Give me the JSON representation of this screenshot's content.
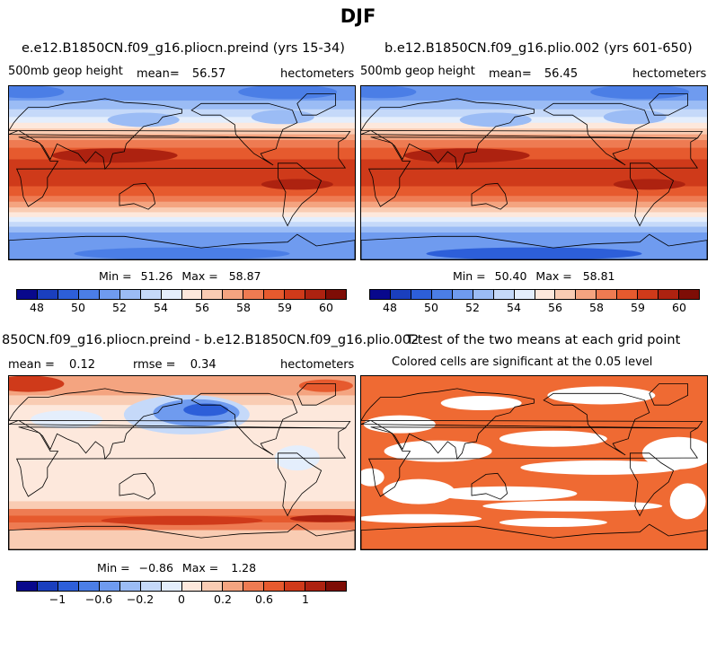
{
  "page_title": "DJF",
  "chart_data": [
    {
      "type": "heatmap",
      "title": "e.e12.B1850CN.f09_g16.pliocn.preind (yrs 15-34)",
      "variable": "500mb geop height",
      "mean_label": "mean=",
      "mean": "56.57",
      "units": "hectometers",
      "min_label": "Min =",
      "min": "51.26",
      "max_label": "Max =",
      "max": "58.87",
      "colorbar_ticks": [
        "48",
        "50",
        "52",
        "54",
        "56",
        "58",
        "59",
        "60"
      ],
      "field": "abs"
    },
    {
      "type": "heatmap",
      "title": "b.e12.B1850CN.f09_g16.plio.002 (yrs 601-650)",
      "variable": "500mb geop height",
      "mean_label": "mean=",
      "mean": "56.45",
      "units": "hectometers",
      "min_label": "Min =",
      "min": "50.40",
      "max_label": "Max =",
      "max": "58.81",
      "colorbar_ticks": [
        "48",
        "50",
        "52",
        "54",
        "56",
        "58",
        "59",
        "60"
      ],
      "field": "abs"
    },
    {
      "type": "heatmap",
      "title": "850CN.f09_g16.pliocn.preind - b.e12.B1850CN.f09_g16.plio.002",
      "mean_label": "mean =",
      "mean": "0.12",
      "rmse_label": "rmse =",
      "rmse": "0.34",
      "units": "hectometers",
      "min_label": "Min =",
      "min": "−0.86",
      "max_label": "Max =",
      "max": "1.28",
      "colorbar_ticks": [
        "−1",
        "−0.6",
        "−0.2",
        "0",
        "0.2",
        "0.6",
        "1"
      ],
      "field": "diff"
    },
    {
      "type": "heatmap",
      "title": "T-test of the two means at each grid point",
      "subtitle": "Colored cells are significant at the 0.05 level",
      "field": "sig"
    }
  ],
  "colors": {
    "palette": [
      "#08088c",
      "#1a3fbe",
      "#2d5fd9",
      "#4b7ee6",
      "#6f9bef",
      "#9bbcf5",
      "#c5d9f9",
      "#e4eefc",
      "#fde8dc",
      "#f9ccb3",
      "#f4a480",
      "#ee7b52",
      "#e65a2e",
      "#cf3a1a",
      "#ad2210",
      "#7e0d06"
    ],
    "significant": "#ef6a33",
    "land_outline": "#000000"
  }
}
